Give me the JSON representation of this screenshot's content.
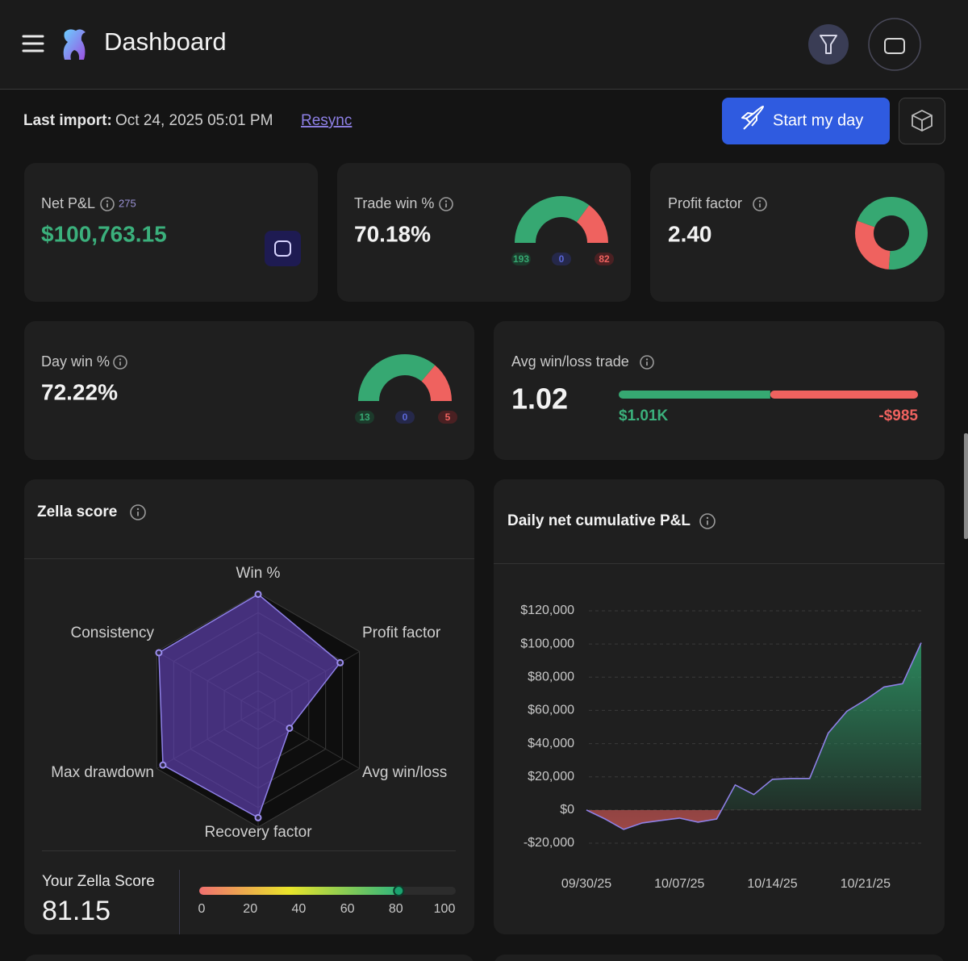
{
  "theme": {
    "positive": "#36a872",
    "negative": "#ef625f",
    "neutral": "#5b67d8",
    "accent": "#8e80e6",
    "button": "#2f5be0"
  },
  "header": {
    "title": "Dashboard"
  },
  "import_bar": {
    "label": "Last import:",
    "value": "Oct 24, 2025 05:01 PM",
    "link": "Resync",
    "button": "Start my day"
  },
  "net_pnl": {
    "label": "Net P&L",
    "count": 275,
    "value": "$100,763.15"
  },
  "trade_win": {
    "label": "Trade win %",
    "value": "70.18%",
    "wins": 193,
    "breakeven": 0,
    "losses": 82
  },
  "profit_factor": {
    "label": "Profit factor",
    "value": 2.4,
    "value_label": "2.40"
  },
  "day_win": {
    "label": "Day win %",
    "value": "72.22%",
    "wins": 13,
    "breakeven": 0,
    "losses": 5
  },
  "avg_win_loss": {
    "label": "Avg win/loss trade",
    "value": "1.02",
    "avg_win": 1010,
    "avg_win_label": "$1.01K",
    "avg_loss": -985,
    "avg_loss_label": "-$985"
  },
  "zella_score": {
    "title": "Zella score",
    "type": "radar",
    "axes": [
      "Win %",
      "Profit factor",
      "Avg win/loss",
      "Recovery factor",
      "Max drawdown",
      "Consistency"
    ],
    "values": [
      99,
      81,
      31,
      92,
      94,
      98
    ],
    "rlim": [
      0,
      100
    ],
    "score_label": "Your Zella Score",
    "score": 81.15,
    "xlim": [
      0,
      100
    ],
    "xticks": [
      0,
      20,
      40,
      60,
      80,
      100
    ]
  },
  "cumulative_pnl": {
    "title": "Daily net cumulative P&L",
    "type": "area",
    "categories": [
      "09/30/25",
      null,
      null,
      null,
      null,
      "10/07/25",
      null,
      null,
      null,
      null,
      "10/14/25",
      null,
      null,
      null,
      null,
      "10/21/25",
      null,
      null,
      null
    ],
    "values": [
      0,
      -5400,
      -11700,
      -7800,
      -6300,
      -4900,
      -7300,
      -5400,
      15100,
      9300,
      18500,
      19000,
      19000,
      46300,
      59500,
      66300,
      74100,
      76100,
      100763.15
    ],
    "ylim": [
      -20000,
      120000
    ],
    "yticks": [
      {
        "value": -20000,
        "label": "-$20,000"
      },
      {
        "value": 0,
        "label": "$0"
      },
      {
        "value": 20000,
        "label": "$20,000"
      },
      {
        "value": 40000,
        "label": "$40,000"
      },
      {
        "value": 60000,
        "label": "$60,000"
      },
      {
        "value": 80000,
        "label": "$80,000"
      },
      {
        "value": 100000,
        "label": "$100,000"
      },
      {
        "value": 120000,
        "label": "$120,000"
      }
    ],
    "grid": true
  }
}
